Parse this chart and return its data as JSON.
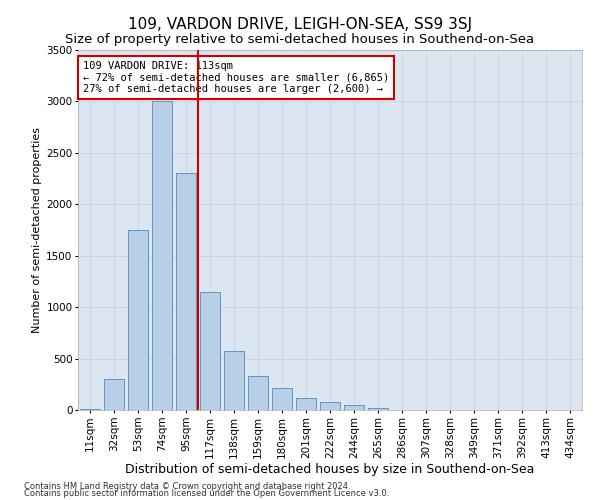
{
  "title": "109, VARDON DRIVE, LEIGH-ON-SEA, SS9 3SJ",
  "subtitle": "Size of property relative to semi-detached houses in Southend-on-Sea",
  "xlabel": "Distribution of semi-detached houses by size in Southend-on-Sea",
  "ylabel": "Number of semi-detached properties",
  "footer1": "Contains HM Land Registry data © Crown copyright and database right 2024.",
  "footer2": "Contains public sector information licensed under the Open Government Licence v3.0.",
  "annotation_title": "109 VARDON DRIVE: 113sqm",
  "annotation_line1": "← 72% of semi-detached houses are smaller (6,865)",
  "annotation_line2": "27% of semi-detached houses are larger (2,600) →",
  "bar_categories": [
    "11sqm",
    "32sqm",
    "53sqm",
    "74sqm",
    "95sqm",
    "117sqm",
    "138sqm",
    "159sqm",
    "180sqm",
    "201sqm",
    "222sqm",
    "244sqm",
    "265sqm",
    "286sqm",
    "307sqm",
    "328sqm",
    "349sqm",
    "371sqm",
    "392sqm",
    "413sqm",
    "434sqm"
  ],
  "bar_values": [
    5,
    305,
    1750,
    3000,
    2300,
    1150,
    575,
    330,
    215,
    120,
    75,
    50,
    20,
    0,
    0,
    0,
    0,
    0,
    0,
    0,
    0
  ],
  "bar_color": "#b8cfe8",
  "bar_edge_color": "#5588bb",
  "vline_color": "#cc0000",
  "vline_x": 4.5,
  "ylim": [
    0,
    3500
  ],
  "yticks": [
    0,
    500,
    1000,
    1500,
    2000,
    2500,
    3000,
    3500
  ],
  "grid_color": "#ccd5e8",
  "background_color": "#dce6f0",
  "annotation_box_color": "#ffffff",
  "annotation_box_edge": "#cc0000",
  "title_fontsize": 11,
  "subtitle_fontsize": 9.5,
  "xlabel_fontsize": 9,
  "ylabel_fontsize": 8,
  "tick_fontsize": 7.5,
  "annotation_fontsize": 7.5,
  "footer_fontsize": 6
}
